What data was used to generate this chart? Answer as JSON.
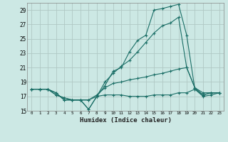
{
  "title": "",
  "xlabel": "Humidex (Indice chaleur)",
  "bg_color": "#cce8e4",
  "grid_color": "#b0c8c4",
  "line_color": "#1a6e66",
  "xlim": [
    -0.5,
    23.5
  ],
  "ylim": [
    15,
    30
  ],
  "xticks": [
    0,
    1,
    2,
    3,
    4,
    5,
    6,
    7,
    8,
    9,
    10,
    11,
    12,
    13,
    14,
    15,
    16,
    17,
    18,
    19,
    20,
    21,
    22,
    23
  ],
  "yticks": [
    15,
    17,
    19,
    21,
    23,
    25,
    27,
    29
  ],
  "series": [
    [
      18.0,
      18.0,
      18.0,
      17.5,
      16.5,
      16.5,
      16.5,
      15.2,
      17.0,
      18.5,
      20.5,
      21.0,
      23.2,
      24.8,
      25.5,
      29.0,
      29.2,
      29.5,
      29.8,
      25.5,
      18.0,
      17.2,
      17.5,
      17.5
    ],
    [
      18.0,
      18.0,
      18.0,
      17.5,
      16.5,
      16.5,
      16.5,
      15.2,
      17.0,
      19.0,
      20.2,
      21.2,
      22.0,
      23.2,
      24.5,
      25.8,
      26.8,
      27.2,
      28.0,
      21.0,
      18.2,
      17.5,
      17.5,
      17.5
    ],
    [
      18.0,
      18.0,
      18.0,
      17.2,
      16.8,
      16.5,
      16.5,
      16.5,
      17.2,
      18.2,
      18.8,
      19.0,
      19.3,
      19.5,
      19.7,
      20.0,
      20.2,
      20.5,
      20.8,
      21.0,
      18.2,
      17.2,
      17.5,
      17.5
    ],
    [
      18.0,
      18.0,
      18.0,
      17.2,
      16.8,
      16.5,
      16.5,
      16.5,
      17.0,
      17.2,
      17.2,
      17.2,
      17.0,
      17.0,
      17.0,
      17.2,
      17.2,
      17.2,
      17.5,
      17.5,
      18.0,
      17.0,
      17.2,
      17.5
    ]
  ]
}
